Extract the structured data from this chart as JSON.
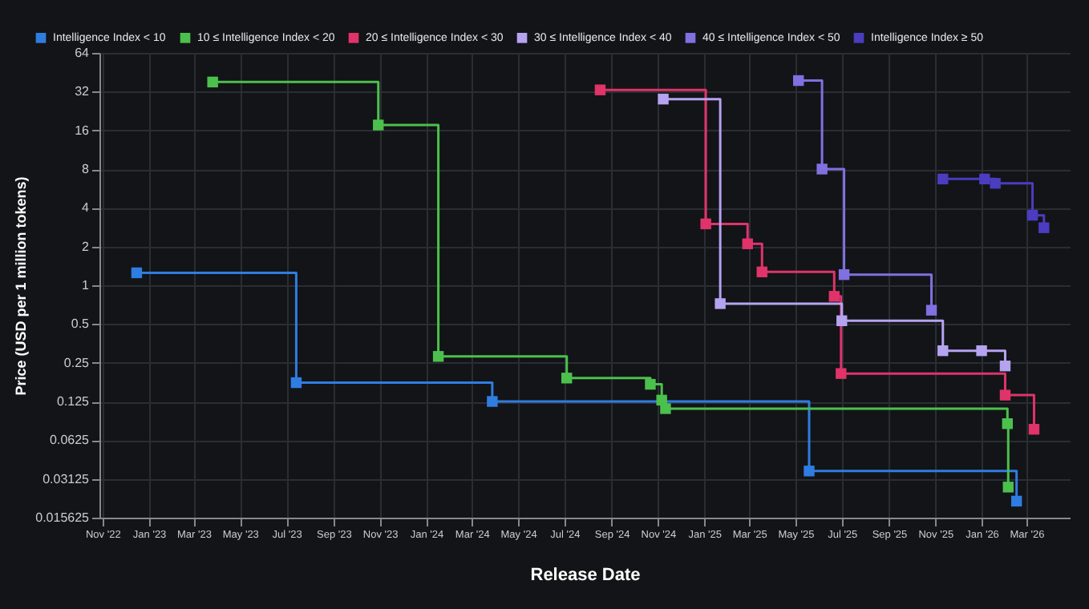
{
  "chart_data": {
    "type": "step",
    "xlabel": "Release Date",
    "ylabel": "Price (USD per 1 million tokens)",
    "legend": "top",
    "grid": true,
    "marker": "square",
    "log": "y",
    "xlim": [
      "2022-10-28",
      "2026-04-27"
    ],
    "ylim": [
      0.015625,
      64
    ],
    "yticks": [
      0.015625,
      0.03125,
      0.0625,
      0.125,
      0.25,
      0.5,
      1,
      2,
      4,
      8,
      16,
      32,
      64
    ],
    "xticks": [
      {
        "value": "2022-11-01",
        "label": "Nov '22"
      },
      {
        "value": "2023-01-01",
        "label": "Jan '23"
      },
      {
        "value": "2023-03-01",
        "label": "Mar '23"
      },
      {
        "value": "2023-05-01",
        "label": "May '23"
      },
      {
        "value": "2023-07-01",
        "label": "Jul '23"
      },
      {
        "value": "2023-09-01",
        "label": "Sep '23"
      },
      {
        "value": "2023-11-01",
        "label": "Nov '23"
      },
      {
        "value": "2024-01-01",
        "label": "Jan '24"
      },
      {
        "value": "2024-03-01",
        "label": "Mar '24"
      },
      {
        "value": "2024-05-01",
        "label": "May '24"
      },
      {
        "value": "2024-07-01",
        "label": "Jul '24"
      },
      {
        "value": "2024-09-01",
        "label": "Sep '24"
      },
      {
        "value": "2024-11-01",
        "label": "Nov '24"
      },
      {
        "value": "2025-01-01",
        "label": "Jan '25"
      },
      {
        "value": "2025-03-01",
        "label": "Mar '25"
      },
      {
        "value": "2025-05-01",
        "label": "May '25"
      },
      {
        "value": "2025-07-01",
        "label": "Jul '25"
      },
      {
        "value": "2025-09-01",
        "label": "Sep '25"
      },
      {
        "value": "2025-11-01",
        "label": "Nov '25"
      },
      {
        "value": "2026-01-01",
        "label": "Jan '26"
      },
      {
        "value": "2026-03-01",
        "label": "Mar '26"
      }
    ],
    "series": [
      {
        "name": "Intelligence Index < 10",
        "color": "#2f7de1",
        "x": [
          "2022-12-16",
          "2023-07-14",
          "2024-03-28",
          "2025-05-19",
          "2026-02-16"
        ],
        "values": [
          1.25,
          0.175,
          0.125,
          0.036,
          0.021
        ]
      },
      {
        "name": "10 ≤ Intelligence Index < 20",
        "color": "#4cc04c",
        "x": [
          "2023-03-26",
          "2023-10-30",
          "2024-01-17",
          "2024-07-04",
          "2024-10-22",
          "2024-11-06",
          "2024-11-11",
          "2026-02-04",
          "2026-02-05"
        ],
        "values": [
          38,
          17.6,
          0.28,
          0.19,
          0.17,
          0.128,
          0.11,
          0.084,
          0.027
        ]
      },
      {
        "name": "20 ≤ Intelligence Index < 30",
        "color": "#e0336a",
        "x": [
          "2024-08-17",
          "2025-01-03",
          "2025-02-27",
          "2025-03-18",
          "2025-06-21",
          "2025-06-30",
          "2026-02-01",
          "2026-03-11"
        ],
        "values": [
          33,
          3,
          2.1,
          1.27,
          0.82,
          0.206,
          0.14,
          0.076
        ]
      },
      {
        "name": "30 ≤ Intelligence Index < 40",
        "color": "#b5a3f0",
        "x": [
          "2024-11-08",
          "2025-01-22",
          "2025-07-01",
          "2025-11-11",
          "2026-01-01",
          "2026-02-01"
        ],
        "values": [
          28,
          0.72,
          0.53,
          0.31,
          0.31,
          0.236
        ]
      },
      {
        "name": "40 ≤ Intelligence Index < 50",
        "color": "#8070e0",
        "x": [
          "2025-05-05",
          "2025-06-05",
          "2025-07-04",
          "2025-10-27"
        ],
        "values": [
          39,
          8,
          1.21,
          0.64
        ]
      },
      {
        "name": "Intelligence Index ≥ 50",
        "color": "#4b3cc0",
        "x": [
          "2025-11-11",
          "2026-01-05",
          "2026-01-19",
          "2026-03-09",
          "2026-03-24"
        ],
        "values": [
          6.7,
          6.7,
          6.2,
          3.5,
          2.8
        ]
      }
    ]
  }
}
